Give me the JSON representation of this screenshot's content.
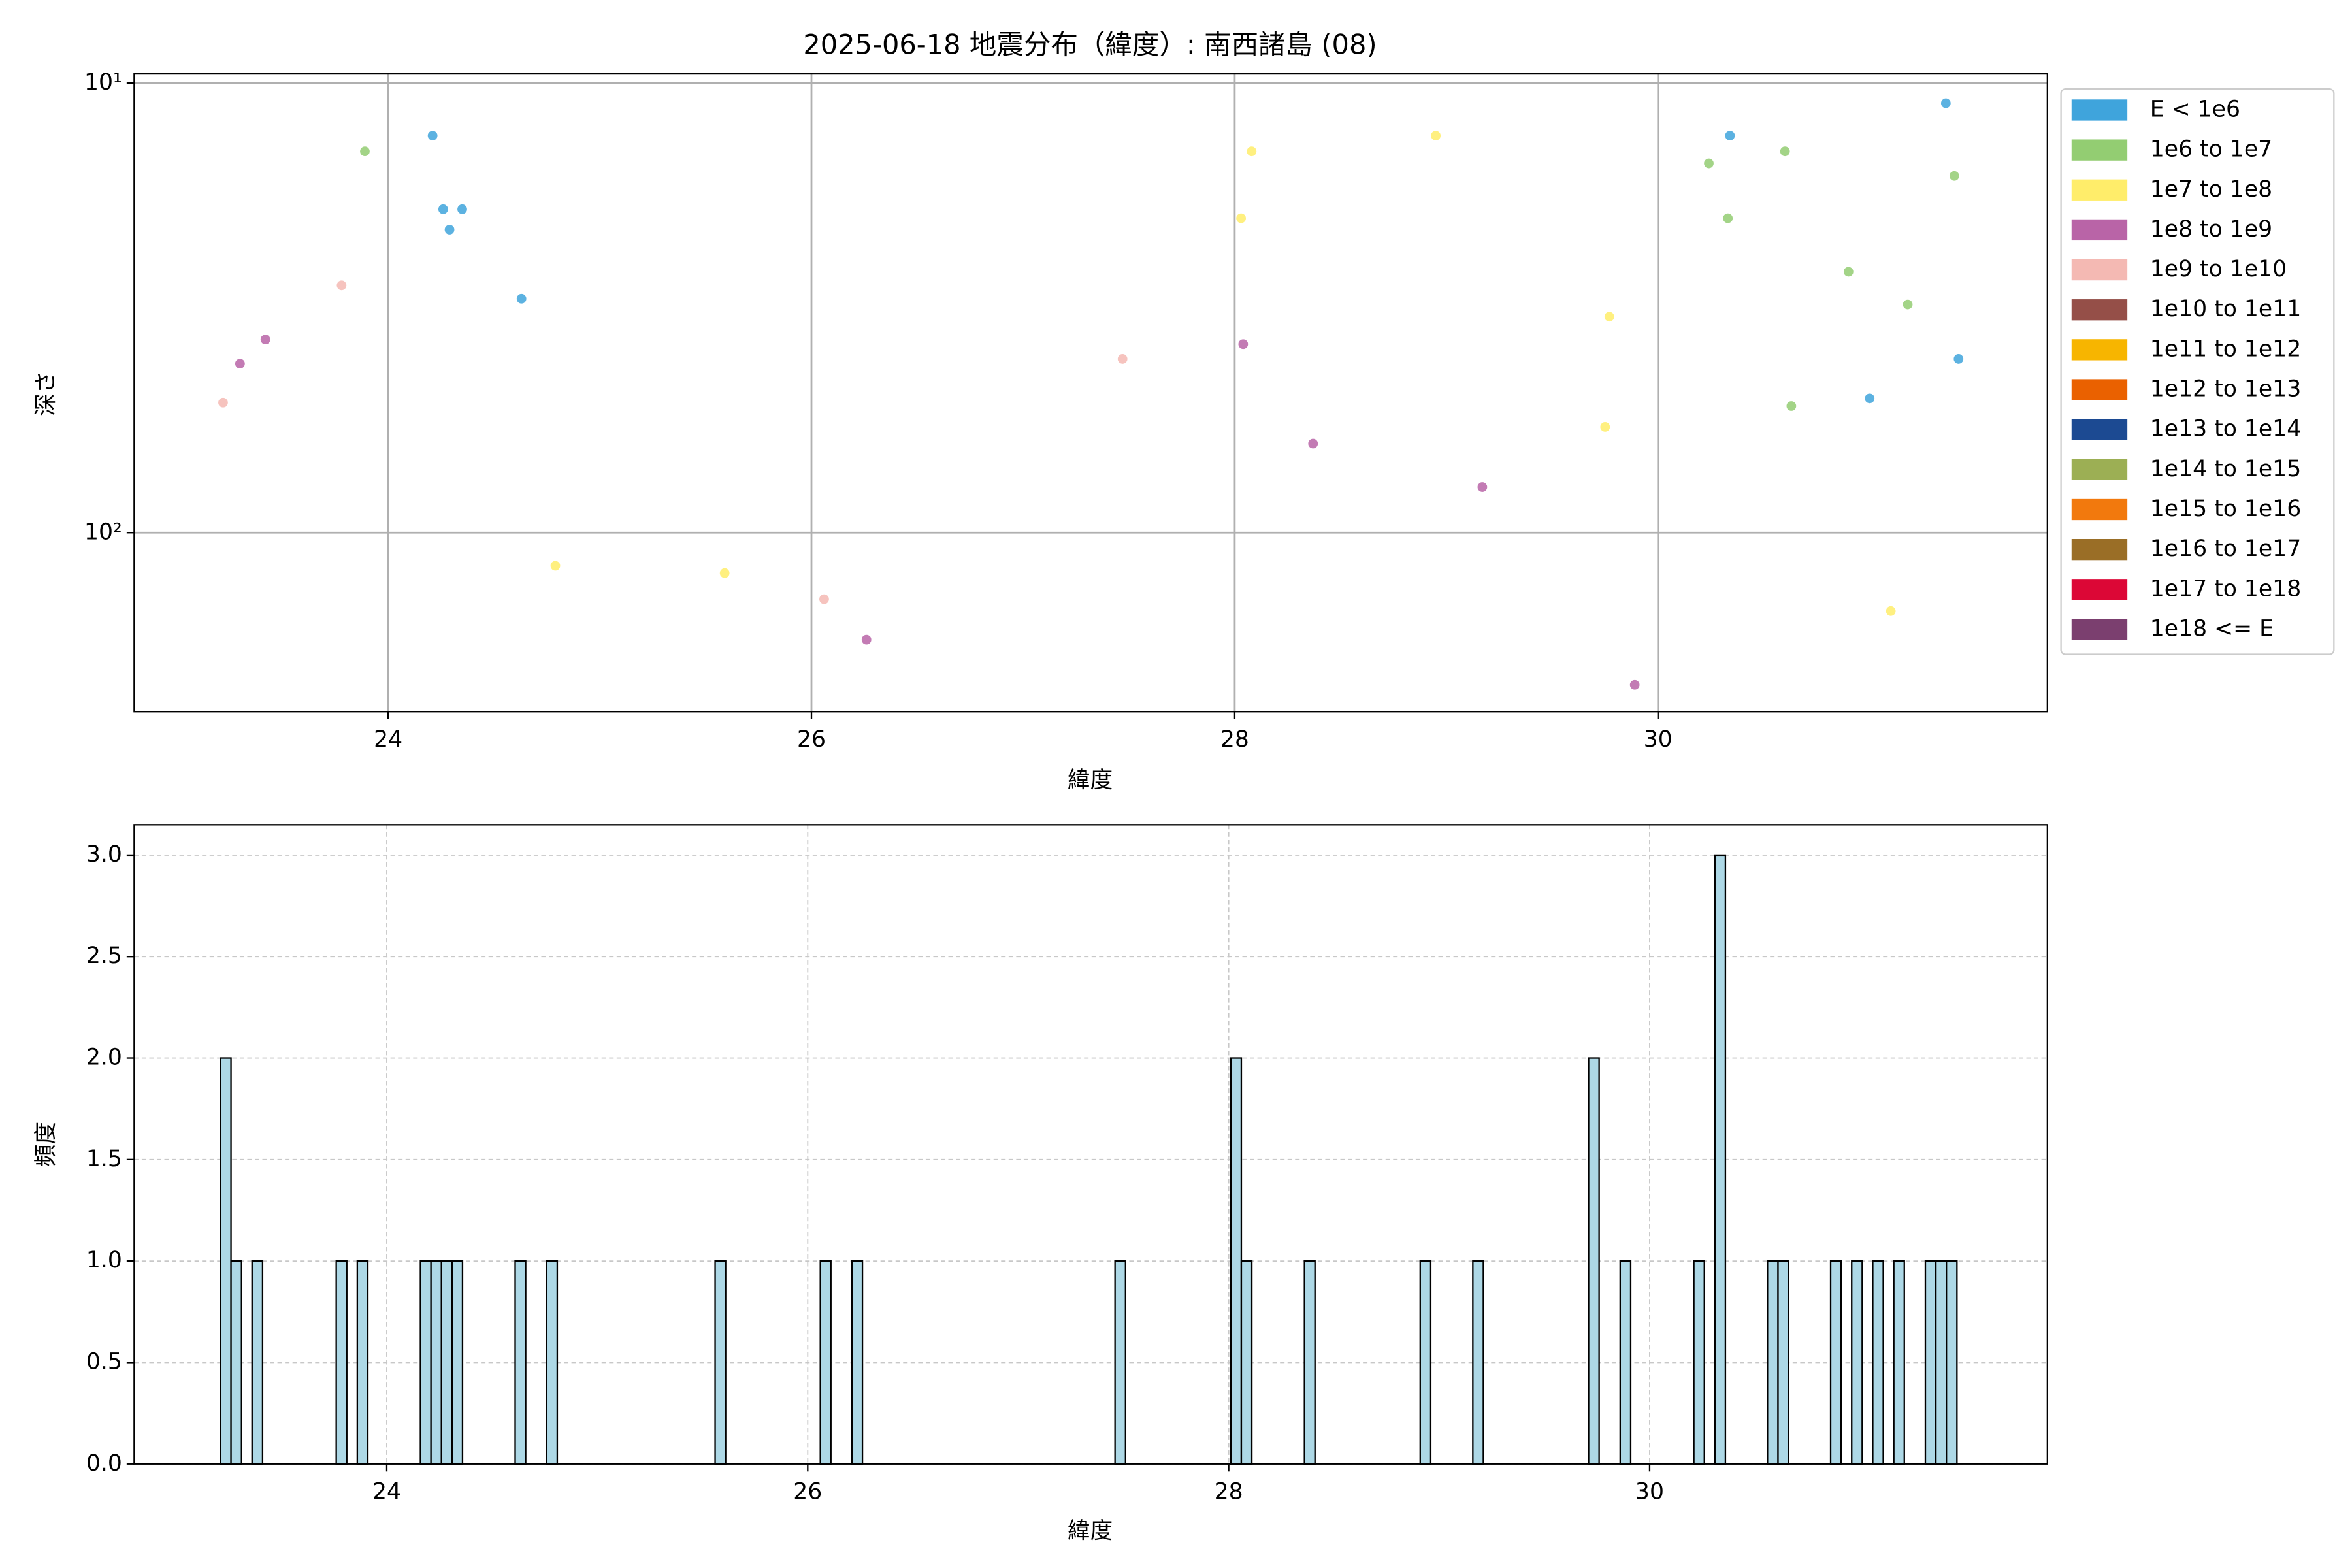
{
  "chart_data": [
    {
      "type": "scatter",
      "title": "2025-06-18 地震分布（緯度）: 南西諸島 (08)",
      "xlabel": "緯度",
      "ylabel": "深さ",
      "xlim": [
        22.8,
        31.84
      ],
      "ylim": [
        250,
        9.55
      ],
      "log_y": true,
      "grid": true,
      "legend": "outside right",
      "xticks": [
        24,
        26,
        28,
        30
      ],
      "yticks": [
        {
          "value": 10,
          "label": "10¹"
        },
        {
          "value": 100,
          "label": "10²"
        }
      ],
      "series": [
        {
          "name": "E < 1e6",
          "color": "#3fa4dc",
          "x": [
            24.21,
            24.26,
            24.35,
            24.29,
            24.63,
            30.34,
            31.36,
            31.42,
            31.0
          ],
          "values": [
            13.1,
            19.1,
            19.1,
            21.2,
            30.2,
            13.1,
            11.1,
            41.1,
            50.3
          ]
        },
        {
          "name": "1e6 to 1e7",
          "color": "#93cd72",
          "x": [
            23.89,
            30.24,
            30.33,
            30.6,
            31.4,
            30.9,
            31.18,
            30.63
          ],
          "values": [
            14.2,
            15.1,
            20.0,
            14.2,
            16.1,
            26.3,
            31.1,
            52.3
          ]
        },
        {
          "name": "1e7 to 1e8",
          "color": "#ffed6a",
          "x": [
            28.08,
            28.03,
            28.95,
            29.77,
            29.75,
            24.79,
            25.59,
            31.1
          ],
          "values": [
            14.2,
            20.0,
            13.1,
            33.1,
            58.2,
            118.5,
            123.0,
            149.4
          ]
        },
        {
          "name": "1e8 to 1e9",
          "color": "#b964a7",
          "x": [
            23.3,
            23.42,
            28.04,
            28.37,
            29.17,
            26.26,
            29.89
          ],
          "values": [
            42.1,
            37.2,
            38.1,
            63.4,
            79.2,
            173.0,
            218.0
          ]
        },
        {
          "name": "1e9 to 1e10",
          "color": "#f4b9b3",
          "x": [
            23.22,
            23.78,
            27.47,
            26.06
          ],
          "values": [
            51.4,
            28.2,
            41.1,
            140.6
          ]
        },
        {
          "name": "1e10 to 1e11",
          "color": "#954f48",
          "x": [],
          "values": []
        },
        {
          "name": "1e11 to 1e12",
          "color": "#f7b500",
          "x": [],
          "values": []
        },
        {
          "name": "1e12 to 1e13",
          "color": "#ea6100",
          "x": [],
          "values": []
        },
        {
          "name": "1e13 to 1e14",
          "color": "#1c4a92",
          "x": [],
          "values": []
        },
        {
          "name": "1e14 to 1e15",
          "color": "#9caf54",
          "x": [],
          "values": []
        },
        {
          "name": "1e15 to 1e16",
          "color": "#f2790d",
          "x": [],
          "values": []
        },
        {
          "name": "1e16 to 1e17",
          "color": "#9a6e26",
          "x": [],
          "values": []
        },
        {
          "name": "1e17 to 1e18",
          "color": "#dc0736",
          "x": [],
          "values": []
        },
        {
          "name": "1e18 <= E",
          "color": "#7b3f6f",
          "x": [],
          "values": []
        }
      ]
    },
    {
      "type": "histogram",
      "xlabel": "緯度",
      "ylabel": "頻度",
      "color": "#add8e6",
      "edgecolor": "#000000",
      "grid": "dashed",
      "xlim": [
        22.8,
        31.89
      ],
      "ylim": [
        0,
        3.15
      ],
      "xticks": [
        24,
        26,
        28,
        30
      ],
      "yticks": [
        {
          "value": 0,
          "label": "0.0"
        },
        {
          "value": 0.5,
          "label": "0.5"
        },
        {
          "value": 1,
          "label": "1.0"
        },
        {
          "value": 1.5,
          "label": "1.5"
        },
        {
          "value": 2,
          "label": "2.0"
        },
        {
          "value": 2.5,
          "label": "2.5"
        },
        {
          "value": 3,
          "label": "3.0"
        }
      ],
      "bins": [
        23.21,
        23.26,
        23.31,
        23.36,
        23.41,
        23.46,
        23.51,
        23.56,
        23.61,
        23.66,
        23.71,
        23.76,
        23.81,
        23.86,
        23.91,
        23.96,
        24.01,
        24.06,
        24.11,
        24.16,
        24.21,
        24.26,
        24.31,
        24.36,
        24.41,
        24.46,
        24.51,
        24.56,
        24.61,
        24.66,
        24.71,
        24.76,
        24.81,
        24.86,
        24.91,
        24.96,
        25.01,
        25.06,
        25.11,
        25.16,
        25.21,
        25.26,
        25.31,
        25.36,
        25.41,
        25.46,
        25.51,
        25.56,
        25.61,
        25.66,
        25.71,
        25.76,
        25.81,
        25.86,
        25.91,
        25.96,
        26.01,
        26.06,
        26.11,
        26.16,
        26.21,
        26.26,
        26.31,
        26.36,
        26.41,
        26.46,
        26.51,
        26.56,
        26.61,
        26.66,
        26.71,
        26.76,
        26.81,
        26.86,
        26.91,
        26.96,
        27.01,
        27.06,
        27.11,
        27.16,
        27.21,
        27.26,
        27.31,
        27.36,
        27.41,
        27.46,
        27.51,
        27.56,
        27.61,
        27.66,
        27.71,
        27.76,
        27.81,
        27.86,
        27.91,
        27.96,
        28.01,
        28.06,
        28.11,
        28.16,
        28.21,
        28.26,
        28.31,
        28.36,
        28.41,
        28.46,
        28.51,
        28.56,
        28.61,
        28.66,
        28.71,
        28.76,
        28.81,
        28.86,
        28.91,
        28.96,
        29.01,
        29.06,
        29.11,
        29.16,
        29.21,
        29.26,
        29.31,
        29.36,
        29.41,
        29.46,
        29.51,
        29.56,
        29.61,
        29.66,
        29.71,
        29.76,
        29.81,
        29.86,
        29.91,
        29.96,
        30.01,
        30.06,
        30.11,
        30.16,
        30.21,
        30.26,
        30.31,
        30.36,
        30.41,
        30.46,
        30.51,
        30.56,
        30.61,
        30.66,
        30.71,
        30.76,
        30.81,
        30.86,
        30.91,
        30.96,
        31.01,
        31.06,
        31.11,
        31.16,
        31.21,
        31.26,
        31.31,
        31.36,
        31.41,
        31.46
      ],
      "counts": [
        2,
        1,
        0,
        1,
        0,
        0,
        0,
        0,
        0,
        0,
        0,
        1,
        0,
        1,
        0,
        0,
        0,
        0,
        0,
        1,
        1,
        1,
        1,
        0,
        0,
        0,
        0,
        0,
        1,
        0,
        0,
        1,
        0,
        0,
        0,
        0,
        0,
        0,
        0,
        0,
        0,
        0,
        0,
        0,
        0,
        0,
        0,
        1,
        0,
        0,
        0,
        0,
        0,
        0,
        0,
        0,
        0,
        1,
        0,
        0,
        1,
        0,
        0,
        0,
        0,
        0,
        0,
        0,
        0,
        0,
        0,
        0,
        0,
        0,
        0,
        0,
        0,
        0,
        0,
        0,
        0,
        0,
        0,
        0,
        0,
        1,
        0,
        0,
        0,
        0,
        0,
        0,
        0,
        0,
        0,
        0,
        2,
        1,
        0,
        0,
        0,
        0,
        0,
        1,
        0,
        0,
        0,
        0,
        0,
        0,
        0,
        0,
        0,
        0,
        1,
        0,
        0,
        0,
        0,
        1,
        0,
        0,
        0,
        0,
        0,
        0,
        0,
        0,
        0,
        0,
        2,
        0,
        0,
        1,
        0,
        0,
        0,
        0,
        0,
        0,
        1,
        0,
        3,
        0,
        0,
        0,
        0,
        1,
        1,
        0,
        0,
        0,
        0,
        1,
        0,
        1,
        0,
        1,
        0,
        1,
        0,
        0,
        1,
        1,
        1
      ]
    }
  ]
}
